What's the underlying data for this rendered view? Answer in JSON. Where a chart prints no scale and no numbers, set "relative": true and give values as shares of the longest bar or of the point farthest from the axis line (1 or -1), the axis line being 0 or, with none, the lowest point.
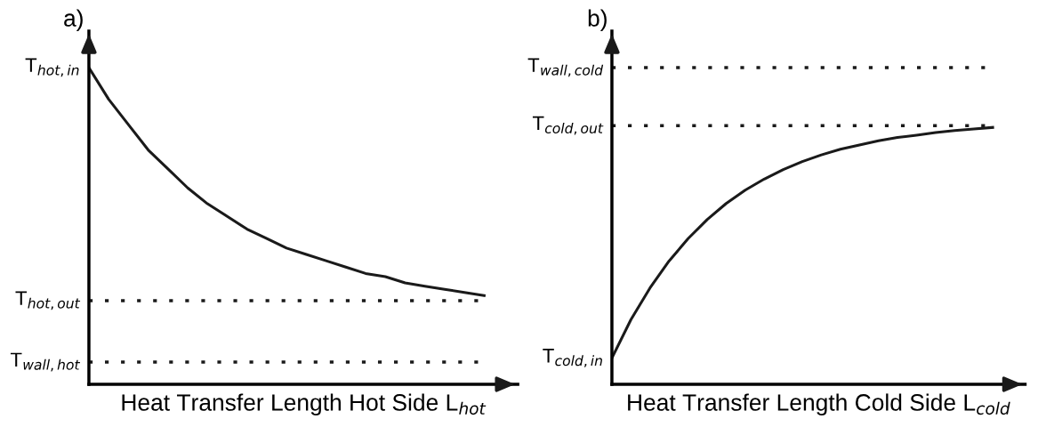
{
  "chart_data": [
    {
      "type": "line",
      "title": "a)",
      "xlabel": "Heat Transfer Length Hot Side L$_{hot}$",
      "relative": true,
      "categories": [
        null,
        null,
        null,
        null,
        null,
        null,
        null,
        null,
        null,
        null,
        null,
        null,
        null,
        null,
        null,
        null,
        null,
        null,
        null,
        null,
        null
      ],
      "series": [
        {
          "color": "#1a1a1a",
          "values": [
            1.0,
            0.9,
            0.82,
            0.74,
            0.68,
            0.62,
            0.57,
            0.53,
            0.49,
            0.46,
            0.43,
            0.41,
            0.39,
            0.37,
            0.35,
            0.34,
            0.32,
            0.31,
            0.3,
            0.29,
            0.28
          ]
        }
      ],
      "annotations": [
        "T$_{hot,in}$"
      ],
      "ref_lines": [
        {
          "axis": "y",
          "value": 0.264,
          "label": "T$_{hot,out}$",
          "color": "#1a1a1a",
          "line_style": "dotted"
        },
        {
          "axis": "y",
          "value": 0.07,
          "label": "T$_{wall,hot}$",
          "color": "#1a1a1a",
          "line_style": "dotted"
        }
      ],
      "grid": false,
      "legend": false,
      "marker": "none",
      "line_style": "solid"
    },
    {
      "type": "line",
      "title": "b)",
      "xlabel": "Heat Transfer Length Cold Side L$_{cold}$",
      "relative": true,
      "categories": [
        null,
        null,
        null,
        null,
        null,
        null,
        null,
        null,
        null,
        null,
        null,
        null,
        null,
        null,
        null,
        null,
        null,
        null,
        null,
        null,
        null
      ],
      "series": [
        {
          "color": "#1a1a1a",
          "values": [
            0.102,
            0.252,
            0.375,
            0.48,
            0.567,
            0.641,
            0.704,
            0.756,
            0.799,
            0.836,
            0.867,
            0.893,
            0.915,
            0.932,
            0.948,
            0.961,
            0.97,
            0.98,
            0.988,
            0.994,
            1.0
          ]
        }
      ],
      "annotations": [
        "T$_{cold,in}$"
      ],
      "ref_lines": [
        {
          "axis": "y",
          "value": 1.233,
          "label": "T$_{wall,cold}$",
          "color": "#1a1a1a",
          "line_style": "dotted"
        },
        {
          "axis": "y",
          "value": 1.007,
          "label": "T$_{cold,out}$",
          "color": "#1a1a1a",
          "line_style": "dotted"
        }
      ],
      "grid": false,
      "legend": false,
      "marker": "none",
      "line_style": "solid"
    }
  ]
}
